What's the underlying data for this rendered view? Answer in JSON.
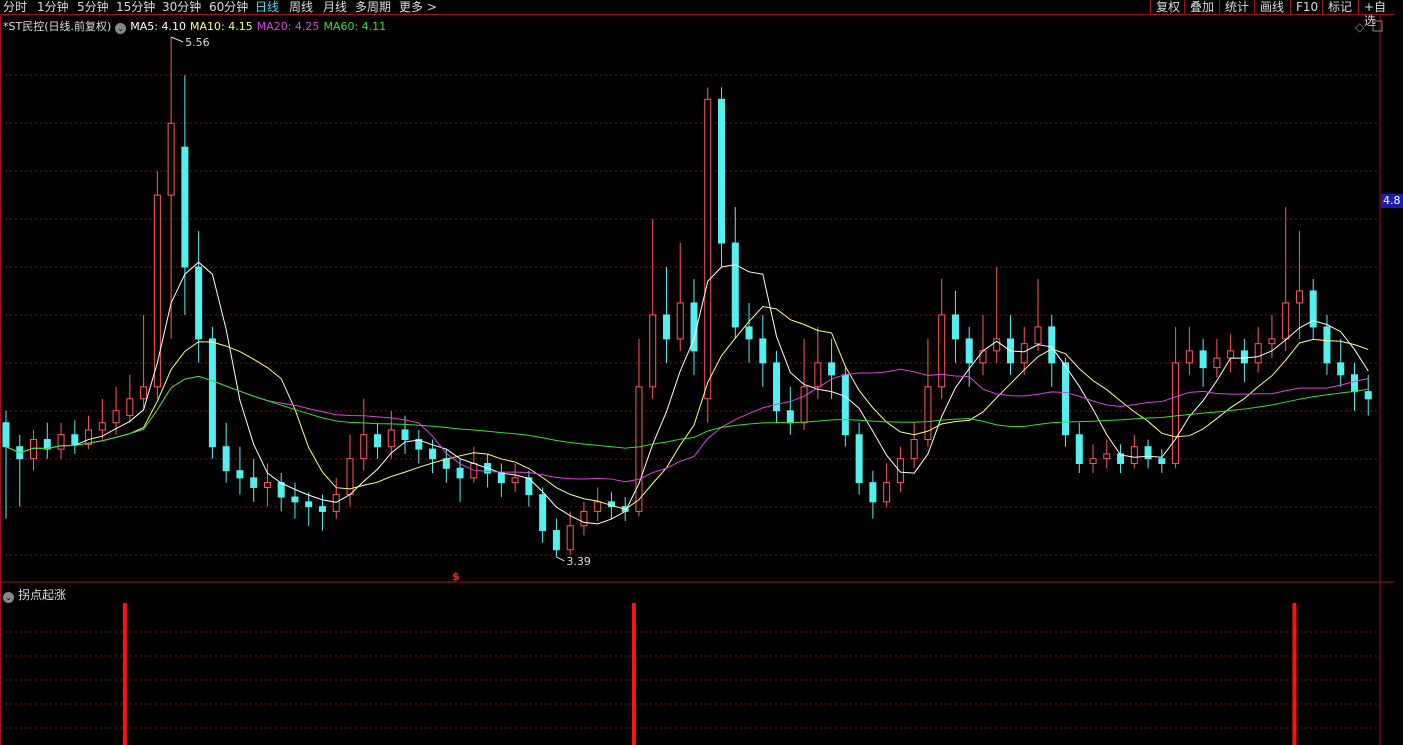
{
  "toolbar": {
    "periods": [
      "分时",
      "1分钟",
      "5分钟",
      "15分钟",
      "30分钟",
      "60分钟",
      "日线",
      "周线",
      "月线",
      "多周期",
      "更多 >"
    ],
    "active_period": "日线",
    "tools": [
      "复权",
      "叠加",
      "统计",
      "画线",
      "F10",
      "标记",
      "+自选"
    ]
  },
  "legend": {
    "title": "*ST民控(日线.前复权)",
    "ma5": "MA5: 4.10",
    "ma10": "MA10: 4.15",
    "ma20": "MA20: 4.25",
    "ma60": "MA60: 4.11"
  },
  "colors": {
    "up": "#ff5a5a",
    "down": "#54f0f0",
    "ma5": "#ffffff",
    "ma10": "#ffff80",
    "ma20": "#e040e0",
    "ma60": "#30e030",
    "grid": "#8a1010",
    "signal": "#ff1010"
  },
  "annotations": {
    "high_label": "5.56",
    "low_label": "3.39",
    "marker": "$"
  },
  "price_tag": "4.8",
  "indicator": {
    "title": "拐点起涨",
    "signal_indices": [
      9,
      46,
      94
    ]
  },
  "chart_data": {
    "type": "candlestick",
    "ylim": [
      3.3,
      5.65
    ],
    "ohlc": [
      [
        3.95,
        4.0,
        3.55,
        3.85
      ],
      [
        3.85,
        3.9,
        3.6,
        3.8
      ],
      [
        3.8,
        3.92,
        3.75,
        3.88
      ],
      [
        3.88,
        3.95,
        3.8,
        3.84
      ],
      [
        3.84,
        3.95,
        3.8,
        3.9
      ],
      [
        3.9,
        3.96,
        3.82,
        3.86
      ],
      [
        3.86,
        3.98,
        3.84,
        3.92
      ],
      [
        3.92,
        4.05,
        3.88,
        3.95
      ],
      [
        3.95,
        4.1,
        3.9,
        4.0
      ],
      [
        3.98,
        4.15,
        3.95,
        4.05
      ],
      [
        4.05,
        4.4,
        4.0,
        4.1
      ],
      [
        4.1,
        5.0,
        4.05,
        4.9
      ],
      [
        4.9,
        5.56,
        4.3,
        5.2
      ],
      [
        5.1,
        5.4,
        4.4,
        4.6
      ],
      [
        4.6,
        4.75,
        4.2,
        4.3
      ],
      [
        4.3,
        4.35,
        3.8,
        3.85
      ],
      [
        3.85,
        3.95,
        3.7,
        3.75
      ],
      [
        3.75,
        3.85,
        3.65,
        3.72
      ],
      [
        3.72,
        3.8,
        3.62,
        3.68
      ],
      [
        3.68,
        3.78,
        3.6,
        3.7
      ],
      [
        3.7,
        3.74,
        3.58,
        3.64
      ],
      [
        3.64,
        3.7,
        3.55,
        3.62
      ],
      [
        3.62,
        3.66,
        3.52,
        3.6
      ],
      [
        3.6,
        3.65,
        3.5,
        3.58
      ],
      [
        3.58,
        3.72,
        3.55,
        3.65
      ],
      [
        3.65,
        3.9,
        3.6,
        3.8
      ],
      [
        3.8,
        4.05,
        3.75,
        3.9
      ],
      [
        3.9,
        3.95,
        3.8,
        3.85
      ],
      [
        3.85,
        4.0,
        3.8,
        3.92
      ],
      [
        3.92,
        3.98,
        3.82,
        3.88
      ],
      [
        3.88,
        3.92,
        3.78,
        3.84
      ],
      [
        3.84,
        3.88,
        3.74,
        3.8
      ],
      [
        3.8,
        3.84,
        3.7,
        3.76
      ],
      [
        3.76,
        3.8,
        3.62,
        3.72
      ],
      [
        3.72,
        3.85,
        3.7,
        3.78
      ],
      [
        3.78,
        3.82,
        3.68,
        3.74
      ],
      [
        3.74,
        3.78,
        3.64,
        3.7
      ],
      [
        3.7,
        3.78,
        3.66,
        3.72
      ],
      [
        3.72,
        3.75,
        3.6,
        3.65
      ],
      [
        3.65,
        3.68,
        3.45,
        3.5
      ],
      [
        3.5,
        3.55,
        3.39,
        3.42
      ],
      [
        3.42,
        3.58,
        3.4,
        3.52
      ],
      [
        3.52,
        3.62,
        3.48,
        3.58
      ],
      [
        3.58,
        3.68,
        3.54,
        3.62
      ],
      [
        3.62,
        3.66,
        3.55,
        3.6
      ],
      [
        3.6,
        3.64,
        3.54,
        3.58
      ],
      [
        3.58,
        4.3,
        3.56,
        4.1
      ],
      [
        4.1,
        4.8,
        4.05,
        4.4
      ],
      [
        4.4,
        4.6,
        4.2,
        4.3
      ],
      [
        4.3,
        4.7,
        4.25,
        4.45
      ],
      [
        4.45,
        4.55,
        4.15,
        4.25
      ],
      [
        4.05,
        5.35,
        3.95,
        5.3
      ],
      [
        5.3,
        5.35,
        4.6,
        4.7
      ],
      [
        4.7,
        4.85,
        4.3,
        4.35
      ],
      [
        4.35,
        4.45,
        4.2,
        4.3
      ],
      [
        4.3,
        4.4,
        4.1,
        4.2
      ],
      [
        4.2,
        4.25,
        3.95,
        4.0
      ],
      [
        4.0,
        4.1,
        3.9,
        3.95
      ],
      [
        3.95,
        4.3,
        3.92,
        4.1
      ],
      [
        4.1,
        4.35,
        4.05,
        4.2
      ],
      [
        4.2,
        4.3,
        4.05,
        4.15
      ],
      [
        4.15,
        4.18,
        3.85,
        3.9
      ],
      [
        3.9,
        3.95,
        3.65,
        3.7
      ],
      [
        3.7,
        3.75,
        3.55,
        3.62
      ],
      [
        3.62,
        3.78,
        3.6,
        3.7
      ],
      [
        3.7,
        3.85,
        3.66,
        3.8
      ],
      [
        3.8,
        3.95,
        3.76,
        3.88
      ],
      [
        3.88,
        4.3,
        3.85,
        4.1
      ],
      [
        4.1,
        4.55,
        4.05,
        4.4
      ],
      [
        4.4,
        4.5,
        4.2,
        4.3
      ],
      [
        4.3,
        4.35,
        4.1,
        4.2
      ],
      [
        4.2,
        4.4,
        4.15,
        4.25
      ],
      [
        4.25,
        4.6,
        4.2,
        4.3
      ],
      [
        4.3,
        4.4,
        4.15,
        4.2
      ],
      [
        4.2,
        4.35,
        4.15,
        4.28
      ],
      [
        4.28,
        4.55,
        4.25,
        4.35
      ],
      [
        4.35,
        4.4,
        4.1,
        4.2
      ],
      [
        4.2,
        4.22,
        3.85,
        3.9
      ],
      [
        3.9,
        3.95,
        3.74,
        3.78
      ],
      [
        3.78,
        3.86,
        3.74,
        3.8
      ],
      [
        3.8,
        3.88,
        3.76,
        3.82
      ],
      [
        3.82,
        3.86,
        3.74,
        3.78
      ],
      [
        3.78,
        3.9,
        3.76,
        3.85
      ],
      [
        3.85,
        3.88,
        3.76,
        3.8
      ],
      [
        3.8,
        3.84,
        3.74,
        3.78
      ],
      [
        3.78,
        4.35,
        3.76,
        4.2
      ],
      [
        4.2,
        4.35,
        4.15,
        4.25
      ],
      [
        4.25,
        4.3,
        4.1,
        4.18
      ],
      [
        4.18,
        4.3,
        4.14,
        4.22
      ],
      [
        4.22,
        4.32,
        4.16,
        4.25
      ],
      [
        4.25,
        4.3,
        4.12,
        4.2
      ],
      [
        4.2,
        4.35,
        4.16,
        4.28
      ],
      [
        4.28,
        4.4,
        4.22,
        4.3
      ],
      [
        4.3,
        4.85,
        4.25,
        4.45
      ],
      [
        4.45,
        4.75,
        4.3,
        4.5
      ],
      [
        4.5,
        4.55,
        4.3,
        4.35
      ],
      [
        4.35,
        4.4,
        4.15,
        4.2
      ],
      [
        4.2,
        4.3,
        4.1,
        4.15
      ],
      [
        4.15,
        4.2,
        4.0,
        4.08
      ],
      [
        4.08,
        4.15,
        3.98,
        4.05
      ]
    ]
  }
}
